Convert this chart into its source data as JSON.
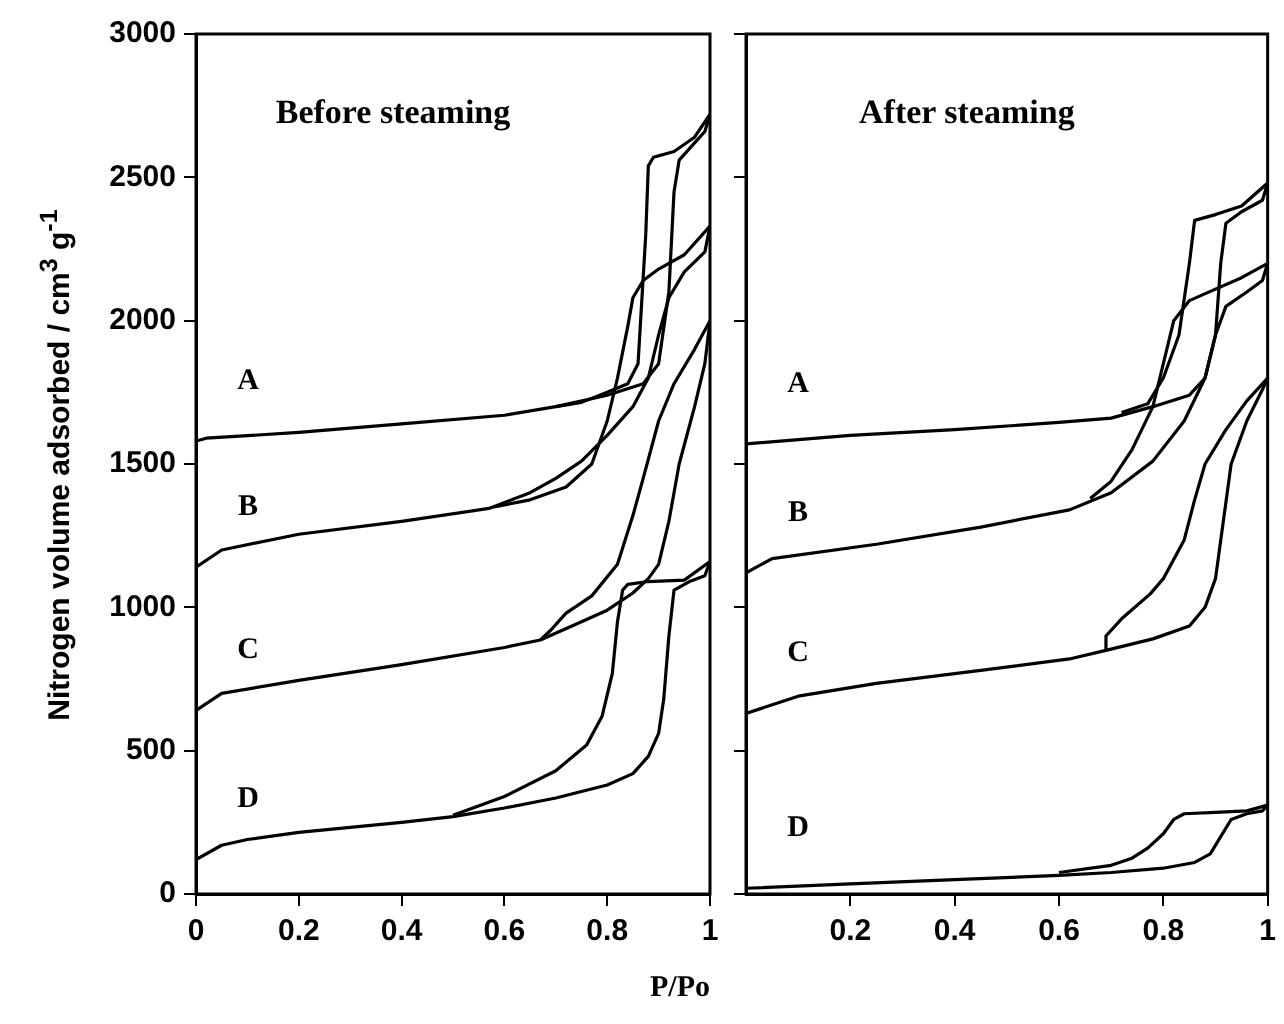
{
  "chart_data": [
    {
      "type": "line",
      "title": "Before steaming",
      "xlabel": "P/Po",
      "ylabel": "Nitrogen volume adsorbed / cm$^{3}$ g$^{-1}$",
      "xlim": [
        0,
        1
      ],
      "xticks": [
        0,
        0.2,
        0.4,
        0.6,
        0.8,
        1
      ],
      "ylim": [
        0,
        3000
      ],
      "yticks": [
        0,
        500,
        1000,
        1500,
        2000,
        2500,
        3000
      ],
      "legend": false,
      "marker": "none",
      "line_style": "solid",
      "series": [
        {
          "name": "A",
          "color": "#000000",
          "x": [
            0,
            0.02,
            0.2,
            0.4,
            0.6,
            0.7,
            0.8,
            0.87,
            0.9,
            0.92,
            0.93,
            0.94,
            0.97,
            0.99,
            1
          ],
          "values": [
            1580,
            1590,
            1610,
            1640,
            1670,
            1700,
            1740,
            1780,
            1850,
            2100,
            2450,
            2560,
            2620,
            2660,
            2720
          ]
        },
        {
          "color": "#000000",
          "x": [
            1,
            0.97,
            0.93,
            0.89,
            0.88,
            0.875,
            0.865,
            0.86,
            0.84,
            0.8,
            0.75,
            0.7
          ],
          "values": [
            2720,
            2640,
            2590,
            2570,
            2540,
            2300,
            2000,
            1850,
            1780,
            1750,
            1715,
            1700
          ]
        },
        {
          "name": "B",
          "color": "#000000",
          "x": [
            0,
            0.05,
            0.2,
            0.4,
            0.57,
            0.65,
            0.7,
            0.75,
            0.8,
            0.85,
            0.88,
            0.9,
            0.92,
            0.95,
            0.99,
            1
          ],
          "values": [
            1140,
            1200,
            1255,
            1300,
            1345,
            1400,
            1450,
            1510,
            1600,
            1700,
            1800,
            1950,
            2080,
            2170,
            2240,
            2330
          ]
        },
        {
          "color": "#000000",
          "x": [
            1,
            0.95,
            0.9,
            0.87,
            0.85,
            0.84,
            0.82,
            0.8,
            0.77,
            0.72,
            0.65,
            0.58
          ],
          "values": [
            2330,
            2230,
            2180,
            2140,
            2080,
            1980,
            1800,
            1650,
            1500,
            1420,
            1375,
            1350
          ]
        },
        {
          "name": "C",
          "color": "#000000",
          "x": [
            0,
            0.05,
            0.2,
            0.4,
            0.6,
            0.67,
            0.75,
            0.8,
            0.85,
            0.88,
            0.9,
            0.92,
            0.94,
            0.97,
            0.99,
            1
          ],
          "values": [
            640,
            700,
            745,
            800,
            860,
            886,
            950,
            990,
            1050,
            1100,
            1150,
            1300,
            1500,
            1700,
            1850,
            2000
          ]
        },
        {
          "color": "#000000",
          "x": [
            1,
            0.97,
            0.93,
            0.9,
            0.87,
            0.85,
            0.82,
            0.77,
            0.72,
            0.69,
            0.67
          ],
          "values": [
            2000,
            1900,
            1780,
            1650,
            1450,
            1320,
            1150,
            1040,
            980,
            920,
            886
          ]
        },
        {
          "name": "D",
          "color": "#000000",
          "x": [
            0,
            0.05,
            0.1,
            0.2,
            0.4,
            0.5,
            0.6,
            0.7,
            0.8,
            0.85,
            0.88,
            0.9,
            0.91,
            0.92,
            0.93,
            0.96,
            0.99,
            1
          ],
          "values": [
            120,
            170,
            190,
            215,
            250,
            270,
            300,
            335,
            380,
            420,
            480,
            560,
            680,
            900,
            1060,
            1090,
            1110,
            1160
          ]
        },
        {
          "color": "#000000",
          "x": [
            1,
            0.95,
            0.88,
            0.84,
            0.83,
            0.82,
            0.81,
            0.79,
            0.76,
            0.7,
            0.6,
            0.5
          ],
          "values": [
            1160,
            1095,
            1090,
            1080,
            1060,
            950,
            770,
            620,
            520,
            430,
            340,
            275
          ]
        }
      ]
    },
    {
      "type": "line",
      "title": "After steaming",
      "xlim": [
        0,
        1
      ],
      "xticks": [
        0.2,
        0.4,
        0.6,
        0.8,
        1
      ],
      "ylim": [
        0,
        3000
      ],
      "yticks": [
        0,
        500,
        1000,
        1500,
        2000,
        2500,
        3000
      ],
      "tick_labels": "x",
      "legend": false,
      "marker": "none",
      "line_style": "solid",
      "series": [
        {
          "name": "A",
          "color": "#000000",
          "x": [
            0,
            0.2,
            0.4,
            0.6,
            0.7,
            0.78,
            0.85,
            0.88,
            0.9,
            0.91,
            0.92,
            0.95,
            0.99,
            1
          ],
          "values": [
            1570,
            1600,
            1620,
            1645,
            1660,
            1700,
            1740,
            1800,
            1950,
            2200,
            2340,
            2380,
            2420,
            2480
          ]
        },
        {
          "color": "#000000",
          "x": [
            1,
            0.95,
            0.9,
            0.86,
            0.85,
            0.83,
            0.8,
            0.77,
            0.72
          ],
          "values": [
            2480,
            2400,
            2370,
            2350,
            2200,
            1950,
            1800,
            1710,
            1680
          ]
        },
        {
          "name": "B",
          "color": "#000000",
          "x": [
            0,
            0.05,
            0.25,
            0.45,
            0.62,
            0.7,
            0.78,
            0.84,
            0.88,
            0.9,
            0.92,
            0.96,
            0.99,
            1
          ],
          "values": [
            1120,
            1170,
            1220,
            1280,
            1340,
            1400,
            1510,
            1650,
            1800,
            1950,
            2050,
            2100,
            2140,
            2200
          ]
        },
        {
          "color": "#000000",
          "x": [
            1,
            0.95,
            0.9,
            0.85,
            0.82,
            0.8,
            0.78,
            0.74,
            0.7,
            0.66
          ],
          "values": [
            2200,
            2150,
            2110,
            2070,
            2000,
            1850,
            1700,
            1550,
            1440,
            1380
          ]
        },
        {
          "name": "C",
          "color": "#000000",
          "x": [
            0,
            0.1,
            0.25,
            0.45,
            0.62,
            0.69,
            0.78,
            0.85,
            0.88,
            0.9,
            0.915,
            0.93,
            0.96,
            0.99,
            1
          ],
          "values": [
            630,
            690,
            735,
            780,
            820,
            850,
            890,
            935,
            1000,
            1100,
            1300,
            1500,
            1650,
            1760,
            1800
          ]
        },
        {
          "color": "#000000",
          "x": [
            1,
            0.96,
            0.92,
            0.88,
            0.86,
            0.84,
            0.8,
            0.775,
            0.72,
            0.69,
            0.69
          ],
          "values": [
            1800,
            1720,
            1620,
            1500,
            1375,
            1235,
            1100,
            1047,
            960,
            900,
            850
          ]
        },
        {
          "name": "D",
          "color": "#000000",
          "x": [
            0,
            0.2,
            0.4,
            0.6,
            0.7,
            0.8,
            0.86,
            0.89,
            0.91,
            0.93,
            0.96,
            0.99,
            1
          ],
          "values": [
            20,
            35,
            50,
            65,
            75,
            90,
            110,
            140,
            200,
            260,
            280,
            290,
            310
          ]
        },
        {
          "color": "#000000",
          "x": [
            1,
            0.96,
            0.9,
            0.84,
            0.82,
            0.8,
            0.77,
            0.74,
            0.7,
            0.6
          ],
          "values": [
            310,
            290,
            285,
            280,
            260,
            210,
            160,
            125,
            100,
            75
          ]
        }
      ]
    }
  ]
}
